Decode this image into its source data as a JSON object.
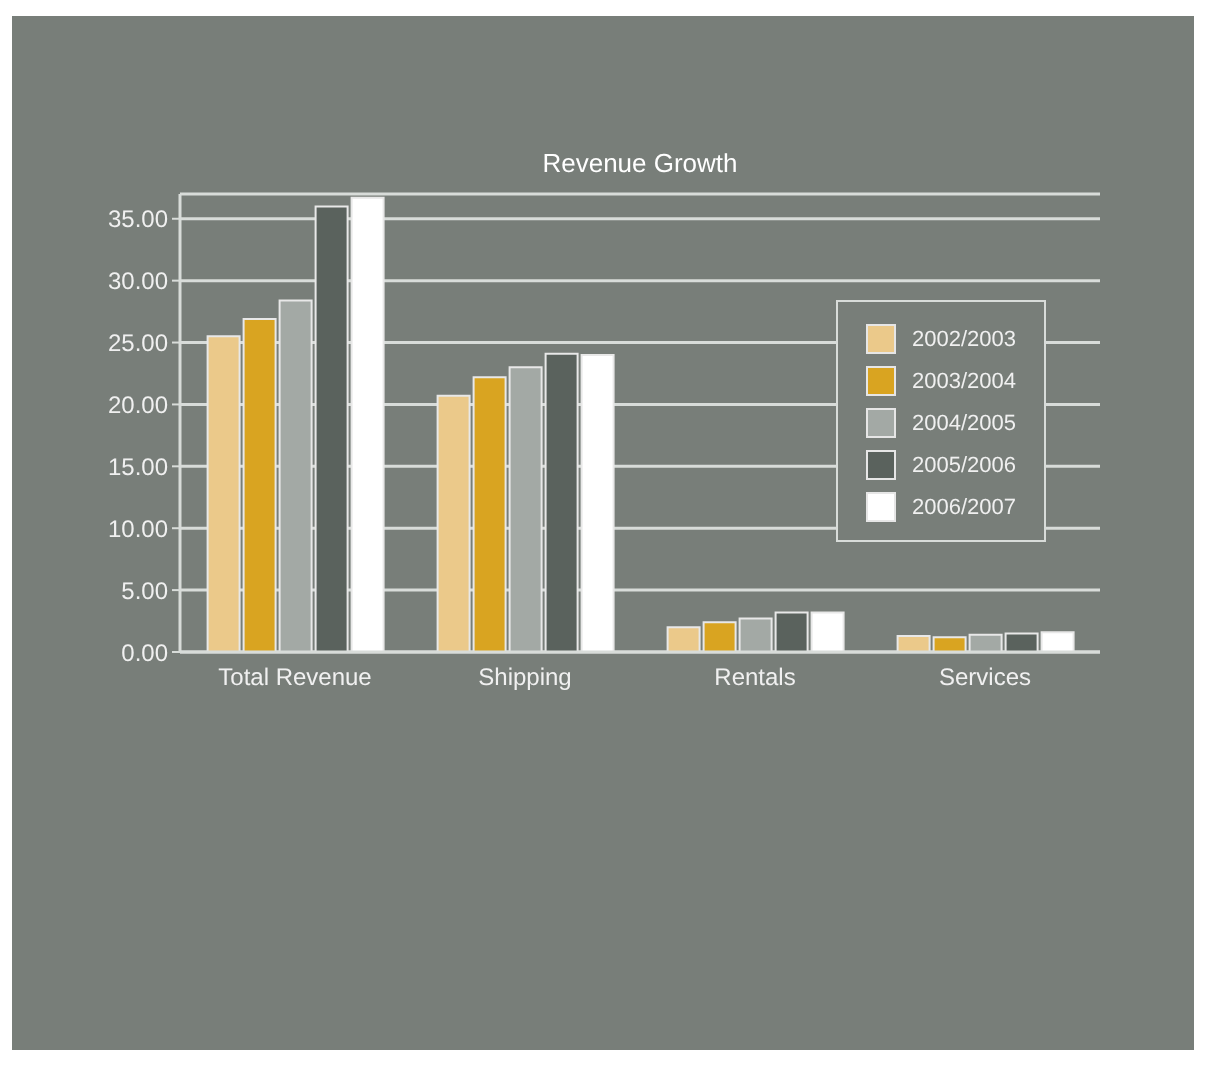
{
  "chart_data": {
    "type": "bar",
    "title": "Revenue Growth",
    "categories": [
      "Total Revenue",
      "Shipping",
      "Rentals",
      "Services"
    ],
    "series": [
      {
        "name": "2002/2003",
        "color": "#ebc98a",
        "values": [
          25.5,
          20.7,
          2.0,
          1.3
        ]
      },
      {
        "name": "2003/2004",
        "color": "#d9a421",
        "values": [
          26.9,
          22.2,
          2.4,
          1.2
        ]
      },
      {
        "name": "2004/2005",
        "color": "#a3a9a5",
        "values": [
          28.4,
          23.0,
          2.7,
          1.4
        ]
      },
      {
        "name": "2005/2006",
        "color": "#5a625d",
        "values": [
          36.0,
          24.1,
          3.2,
          1.5
        ]
      },
      {
        "name": "2006/2007",
        "color": "#ffffff",
        "values": [
          36.7,
          24.0,
          3.2,
          1.6
        ]
      }
    ],
    "ylim": [
      0,
      37
    ],
    "yticks": [
      {
        "value": 0,
        "label": "0.00"
      },
      {
        "value": 5,
        "label": "5.00"
      },
      {
        "value": 10,
        "label": "10.00"
      },
      {
        "value": 15,
        "label": "15.00"
      },
      {
        "value": 20,
        "label": "20.00"
      },
      {
        "value": 25,
        "label": "25.00"
      },
      {
        "value": 30,
        "label": "30.00"
      },
      {
        "value": 35,
        "label": "35.00"
      }
    ],
    "grid": "y",
    "legend": "top right"
  }
}
